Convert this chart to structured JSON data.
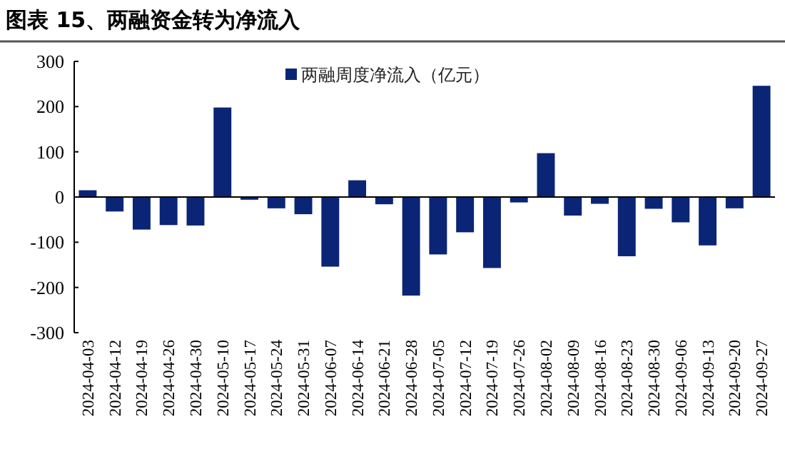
{
  "chart_data": {
    "type": "bar",
    "title": "图表 15、两融资金转为净流入",
    "categories": [
      "2024-04-03",
      "2024-04-12",
      "2024-04-19",
      "2024-04-26",
      "2024-04-30",
      "2024-05-10",
      "2024-05-17",
      "2024-05-24",
      "2024-05-31",
      "2024-06-07",
      "2024-06-14",
      "2024-06-21",
      "2024-06-28",
      "2024-07-05",
      "2024-07-12",
      "2024-07-19",
      "2024-07-26",
      "2024-08-02",
      "2024-08-09",
      "2024-08-16",
      "2024-08-23",
      "2024-08-30",
      "2024-09-06",
      "2024-09-13",
      "2024-09-20",
      "2024-09-27"
    ],
    "series": [
      {
        "name": "两融周度净流入（亿元）",
        "color": "#0a2576",
        "values": [
          15,
          -32,
          -72,
          -62,
          -63,
          198,
          -6,
          -25,
          -38,
          -154,
          37,
          -16,
          -218,
          -127,
          -78,
          -157,
          -12,
          97,
          -41,
          -15,
          -131,
          -26,
          -56,
          -107,
          -25,
          246
        ]
      }
    ],
    "ylim": [
      -300,
      300
    ],
    "yticks": [
      -300,
      -200,
      -100,
      0,
      100,
      200,
      300
    ],
    "legend": "top"
  }
}
